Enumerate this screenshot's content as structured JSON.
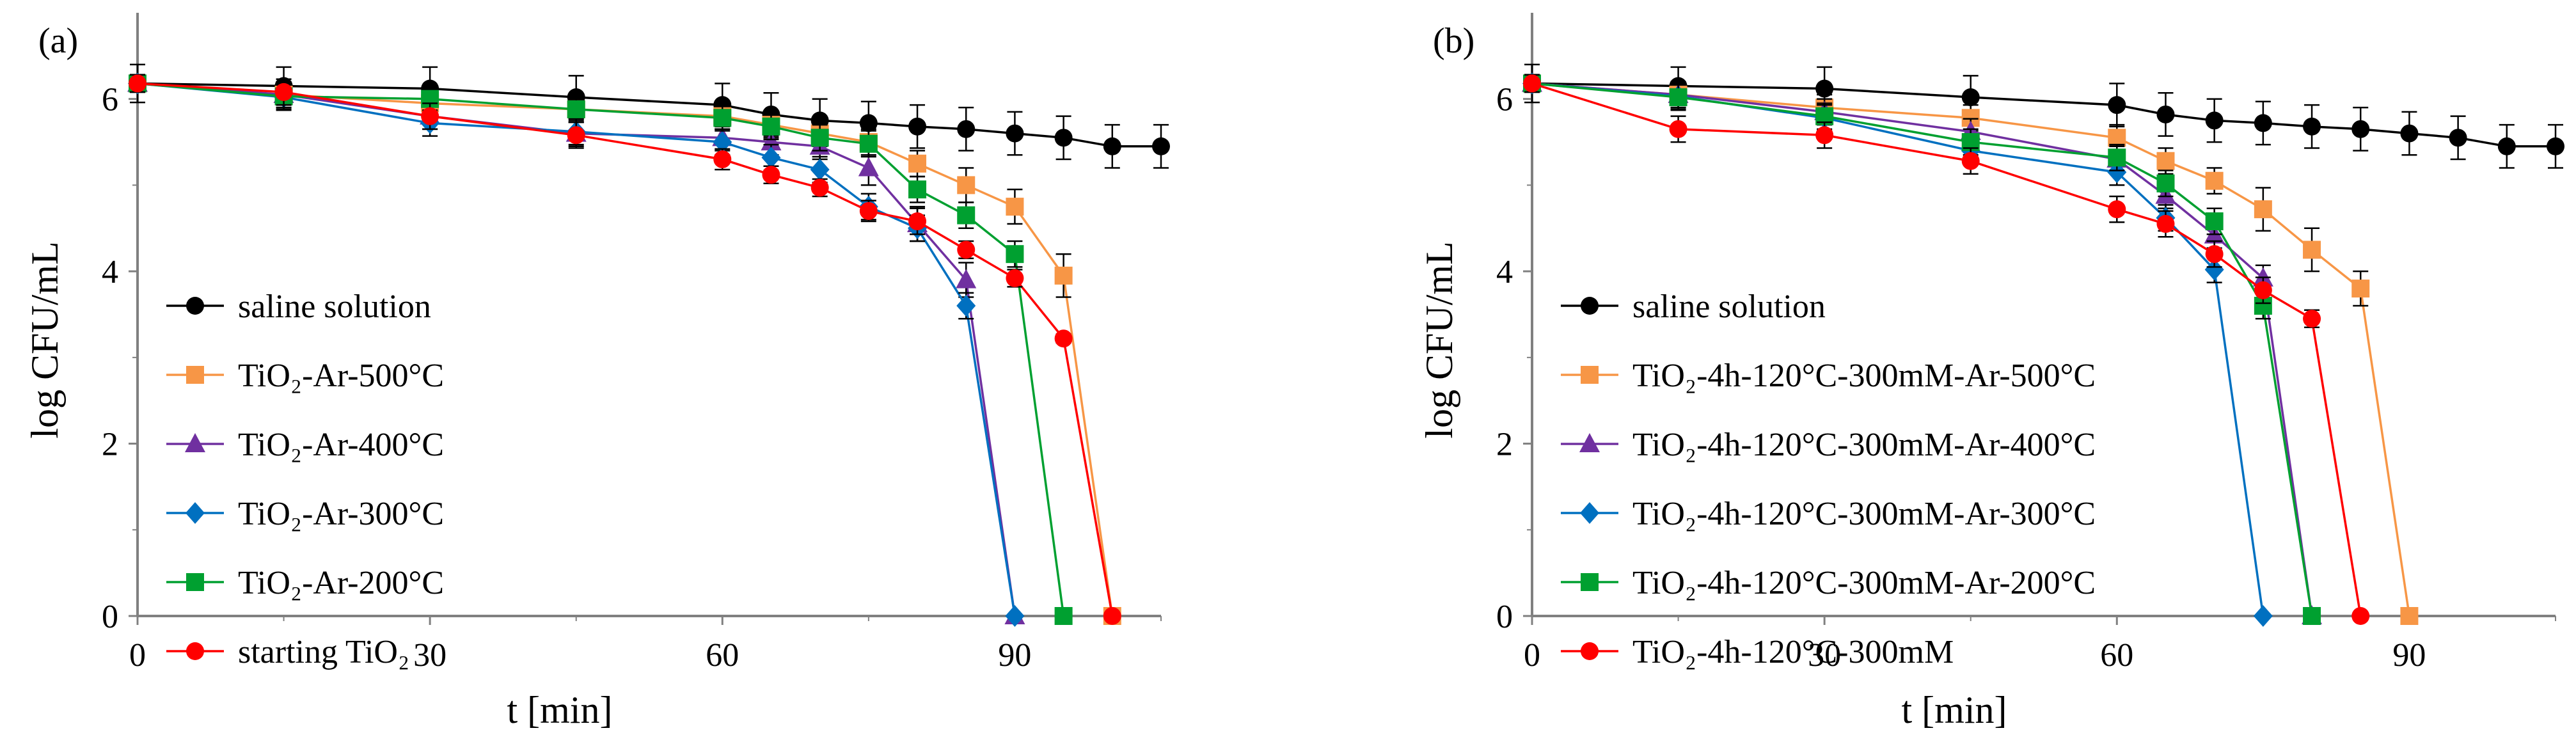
{
  "chart_data": [
    {
      "type": "line",
      "panel_label": "(a)",
      "xlabel": "t [min]",
      "ylabel": "log CFU/mL",
      "xlim": [
        0,
        105
      ],
      "ylim": [
        0,
        7
      ],
      "xticks": [
        0,
        30,
        60,
        90
      ],
      "yticks": [
        0,
        2,
        4,
        6
      ],
      "grid": false,
      "legend_position": "bottom-left",
      "series": [
        {
          "name": "saline solution",
          "color": "#000000",
          "marker": "circle",
          "x": [
            0,
            15,
            30,
            45,
            60,
            65,
            70,
            75,
            80,
            85,
            90,
            95,
            100,
            105
          ],
          "y": [
            6.18,
            6.15,
            6.12,
            6.02,
            5.93,
            5.82,
            5.75,
            5.72,
            5.68,
            5.65,
            5.6,
            5.55,
            5.45,
            5.45
          ],
          "err": [
            0.22,
            0.22,
            0.25,
            0.25,
            0.25,
            0.25,
            0.25,
            0.25,
            0.25,
            0.25,
            0.25,
            0.25,
            0.25,
            0.25
          ]
        },
        {
          "name": "TiO₂-Ar-500°C",
          "color": "#F79646",
          "marker": "square",
          "x": [
            0,
            15,
            30,
            45,
            60,
            65,
            70,
            75,
            80,
            85,
            90,
            95,
            100
          ],
          "y": [
            6.18,
            6.05,
            5.95,
            5.88,
            5.8,
            5.7,
            5.6,
            5.5,
            5.25,
            5.0,
            4.75,
            3.95,
            0
          ],
          "err": [
            0.1,
            0.15,
            0.15,
            0.15,
            0.15,
            0.15,
            0.15,
            0.15,
            0.15,
            0.2,
            0.2,
            0.25,
            0
          ]
        },
        {
          "name": "TiO₂-Ar-400°C",
          "color": "#7030A0",
          "marker": "triangle",
          "x": [
            0,
            15,
            30,
            45,
            60,
            65,
            70,
            75,
            80,
            85,
            90
          ],
          "y": [
            6.18,
            6.05,
            5.8,
            5.6,
            5.55,
            5.5,
            5.45,
            5.2,
            4.55,
            3.9,
            0
          ],
          "err": [
            0.1,
            0.15,
            0.15,
            0.15,
            0.15,
            0.15,
            0.15,
            0.2,
            0.2,
            0.2,
            0
          ]
        },
        {
          "name": "TiO₂-Ar-300°C",
          "color": "#0070C0",
          "marker": "diamond",
          "x": [
            0,
            15,
            30,
            45,
            60,
            65,
            70,
            75,
            80,
            85,
            90
          ],
          "y": [
            6.18,
            6.02,
            5.72,
            5.62,
            5.5,
            5.32,
            5.18,
            4.75,
            4.5,
            3.6,
            0
          ],
          "err": [
            0.1,
            0.15,
            0.15,
            0.15,
            0.15,
            0.15,
            0.15,
            0.15,
            0.15,
            0.15,
            0
          ]
        },
        {
          "name": "TiO₂-Ar-200°C",
          "color": "#00A030",
          "marker": "square",
          "x": [
            0,
            15,
            30,
            45,
            60,
            65,
            70,
            75,
            80,
            85,
            90,
            95
          ],
          "y": [
            6.18,
            6.03,
            6.0,
            5.88,
            5.78,
            5.68,
            5.55,
            5.48,
            4.95,
            4.65,
            4.2,
            0
          ],
          "err": [
            0.1,
            0.15,
            0.15,
            0.15,
            0.15,
            0.15,
            0.15,
            0.15,
            0.15,
            0.15,
            0.15,
            0
          ]
        },
        {
          "name": "starting TiO₂",
          "color": "#FF0000",
          "marker": "circle",
          "x": [
            0,
            15,
            30,
            45,
            60,
            65,
            70,
            75,
            80,
            85,
            90,
            95,
            100
          ],
          "y": [
            6.18,
            6.08,
            5.8,
            5.58,
            5.3,
            5.12,
            4.97,
            4.7,
            4.58,
            4.25,
            3.92,
            3.22,
            0
          ],
          "err": [
            0.1,
            0.15,
            0.15,
            0.15,
            0.12,
            0.1,
            0.1,
            0.12,
            0.15,
            0.1,
            0.1,
            0.05,
            0
          ]
        }
      ]
    },
    {
      "type": "line",
      "panel_label": "(b)",
      "xlabel": "t [min]",
      "ylabel": "log CFU/mL",
      "xlim": [
        0,
        105
      ],
      "ylim": [
        0,
        7
      ],
      "xticks": [
        0,
        30,
        60,
        90
      ],
      "yticks": [
        0,
        2,
        4,
        6
      ],
      "grid": false,
      "legend_position": "bottom-left",
      "series": [
        {
          "name": "saline solution",
          "color": "#000000",
          "marker": "circle",
          "x": [
            0,
            15,
            30,
            45,
            60,
            65,
            70,
            75,
            80,
            85,
            90,
            95,
            100,
            105
          ],
          "y": [
            6.18,
            6.15,
            6.12,
            6.02,
            5.93,
            5.82,
            5.75,
            5.72,
            5.68,
            5.65,
            5.6,
            5.55,
            5.45,
            5.45
          ],
          "err": [
            0.22,
            0.22,
            0.25,
            0.25,
            0.25,
            0.25,
            0.25,
            0.25,
            0.25,
            0.25,
            0.25,
            0.25,
            0.25,
            0.25
          ]
        },
        {
          "name": "TiO₂-4h-120°C-300mM-Ar-500°C",
          "color": "#F79646",
          "marker": "square",
          "x": [
            0,
            15,
            30,
            45,
            60,
            65,
            70,
            75,
            80,
            85,
            90
          ],
          "y": [
            6.18,
            6.05,
            5.9,
            5.78,
            5.55,
            5.28,
            5.05,
            4.72,
            4.25,
            3.8,
            0
          ],
          "err": [
            0.1,
            0.15,
            0.15,
            0.15,
            0.15,
            0.15,
            0.15,
            0.25,
            0.25,
            0.2,
            0
          ]
        },
        {
          "name": "TiO₂-4h-120°C-300mM-Ar-400°C",
          "color": "#7030A0",
          "marker": "triangle",
          "x": [
            0,
            15,
            30,
            45,
            60,
            65,
            70,
            75,
            80
          ],
          "y": [
            6.18,
            6.05,
            5.85,
            5.62,
            5.3,
            4.88,
            4.42,
            3.92,
            0
          ],
          "err": [
            0.1,
            0.15,
            0.15,
            0.15,
            0.15,
            0.15,
            0.15,
            0.15,
            0
          ]
        },
        {
          "name": "TiO₂-4h-120°C-300mM-Ar-300°C",
          "color": "#0070C0",
          "marker": "diamond",
          "x": [
            0,
            15,
            30,
            45,
            60,
            65,
            70,
            75
          ],
          "y": [
            6.18,
            6.03,
            5.78,
            5.4,
            5.15,
            4.62,
            4.02,
            0
          ],
          "err": [
            0.1,
            0.15,
            0.15,
            0.15,
            0.15,
            0.15,
            0.15,
            0
          ]
        },
        {
          "name": "TiO₂-4h-120°C-300mM-Ar-200°C",
          "color": "#00A030",
          "marker": "square",
          "x": [
            0,
            15,
            30,
            45,
            60,
            65,
            70,
            75,
            80
          ],
          "y": [
            6.18,
            6.02,
            5.8,
            5.5,
            5.32,
            5.02,
            4.58,
            3.6,
            0
          ],
          "err": [
            0.1,
            0.15,
            0.15,
            0.15,
            0.15,
            0.15,
            0.15,
            0.15,
            0
          ]
        },
        {
          "name": "TiO₂-4h-120°C-300mM",
          "color": "#FF0000",
          "marker": "circle",
          "x": [
            0,
            15,
            30,
            45,
            60,
            65,
            70,
            75,
            80,
            85
          ],
          "y": [
            6.18,
            5.65,
            5.58,
            5.28,
            4.72,
            4.55,
            4.2,
            3.78,
            3.45,
            0
          ],
          "err": [
            0.1,
            0.15,
            0.15,
            0.15,
            0.15,
            0.15,
            0.15,
            0.15,
            0.1,
            0
          ]
        }
      ]
    }
  ]
}
